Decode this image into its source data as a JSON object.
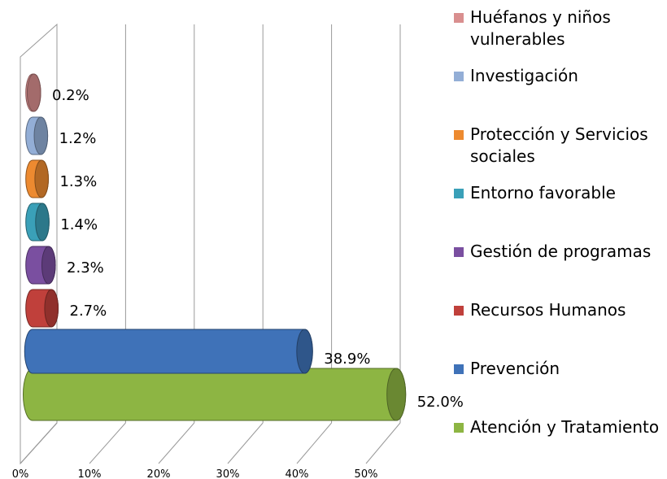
{
  "chart_data": {
    "type": "bar3d",
    "categories": [
      "Atención y Tratamiento",
      "Prevención",
      "Recursos Humanos",
      "Gestión de programas",
      "Entorno favorable",
      "Protección y Servicios sociales",
      "Investigación",
      "Huéfanos y niños vulnerables"
    ],
    "values": [
      52.0,
      38.9,
      2.7,
      2.3,
      1.4,
      1.3,
      1.2,
      0.2
    ],
    "value_labels": [
      "52.0%",
      "38.9%",
      "2.7%",
      "2.3%",
      "1.4%",
      "1.3%",
      "1.2%",
      "0.2%"
    ],
    "colors": [
      "#8db543",
      "#3f72b8",
      "#c0403b",
      "#7a4fa0",
      "#3aa0b8",
      "#ed8a30",
      "#93aed6",
      "#d98f8f"
    ],
    "xlim": [
      0,
      50
    ],
    "xticks": [
      {
        "value": 0,
        "label": "0%"
      },
      {
        "value": 10,
        "label": "10%"
      },
      {
        "value": 20,
        "label": "20%"
      },
      {
        "value": 30,
        "label": "30%"
      },
      {
        "value": 40,
        "label": "40%"
      },
      {
        "value": 50,
        "label": "50%"
      }
    ],
    "grid": true
  }
}
